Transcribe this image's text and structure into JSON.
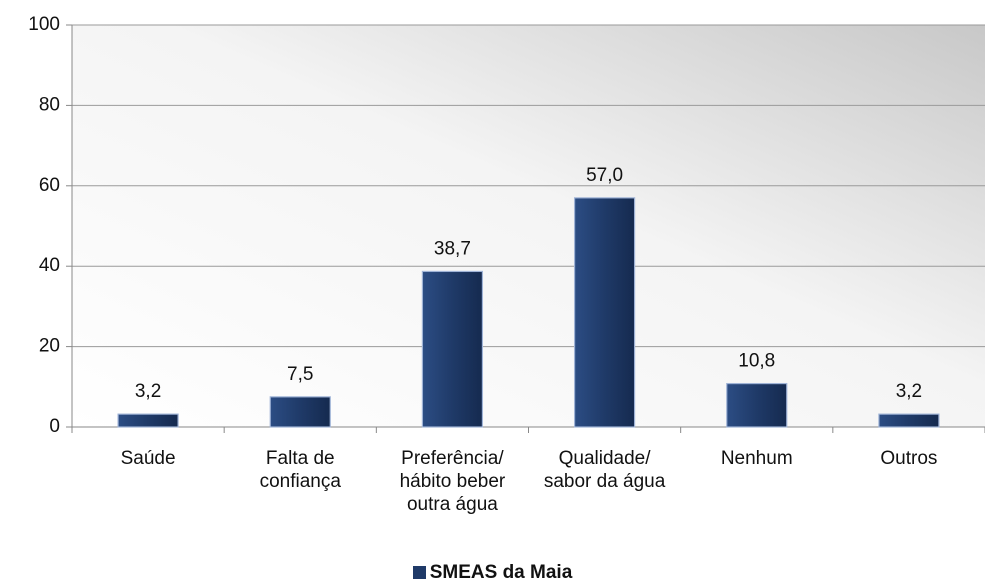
{
  "chart_data": {
    "type": "bar",
    "categories": [
      "Saúde",
      "Falta de confiança",
      "Preferência/ hábito beber outra água",
      "Qualidade/ sabor da água",
      "Nenhum",
      "Outros"
    ],
    "series": [
      {
        "name": "SMEAS da Maia",
        "color": "#1f3a68",
        "values": [
          3.2,
          7.5,
          38.7,
          57.0,
          10.8,
          3.2
        ],
        "value_labels": [
          "3,2",
          "7,5",
          "38,7",
          "57,0",
          "10,8",
          "3,2"
        ]
      }
    ],
    "ylim": [
      0,
      100
    ],
    "yticks": [
      0,
      20,
      40,
      60,
      80,
      100
    ],
    "grid": true,
    "legend": "bottom"
  }
}
